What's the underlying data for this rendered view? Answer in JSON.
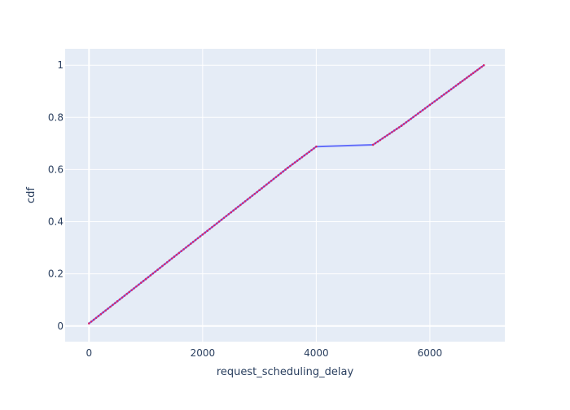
{
  "chart_data": {
    "type": "line",
    "xlabel": "request_scheduling_delay",
    "ylabel": "cdf",
    "xlim": [
      -420,
      7320
    ],
    "ylim": [
      -0.06,
      1.063
    ],
    "x_ticks": [
      0,
      2000,
      4000,
      6000
    ],
    "y_ticks": [
      0,
      0.2,
      0.4,
      0.6,
      0.8,
      1
    ],
    "x_tick_labels": [
      "0",
      "2000",
      "4000",
      "6000"
    ],
    "y_tick_labels": [
      "0",
      "0.2",
      "0.4",
      "0.6",
      "0.8",
      "1"
    ],
    "grid": true,
    "legend": "none",
    "colors": {
      "plot_bg": "#e5ecf6",
      "grid": "#ffffff",
      "line": "#636efa",
      "markers": "#d6266e",
      "text": "#2a3f5f"
    },
    "series": [
      {
        "x": [
          0,
          500,
          1000,
          1500,
          2000,
          2500,
          3000,
          3500,
          4000,
          5000,
          5500,
          6000,
          6500,
          6950
        ],
        "y": [
          0.01,
          0.095,
          0.18,
          0.266,
          0.351,
          0.436,
          0.521,
          0.607,
          0.688,
          0.695,
          0.768,
          0.848,
          0.928,
          1.0
        ]
      }
    ]
  }
}
